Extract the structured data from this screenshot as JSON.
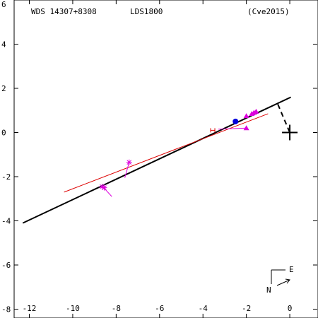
{
  "header": {
    "wds_id": "WDS 14307+8308",
    "discoverer": "LDS1800",
    "reference": "(Cve2015)"
  },
  "compass": {
    "east_label": "E",
    "north_label": "N"
  },
  "chart_data": {
    "type": "scatter",
    "xlim": [
      -12.7,
      1.3
    ],
    "ylim": [
      -8.4,
      6
    ],
    "x_ticks": [
      -12,
      -10,
      -8,
      -6,
      -4,
      -2,
      0
    ],
    "y_ticks": [
      -8,
      -6,
      -4,
      -2,
      0,
      2,
      4,
      6
    ],
    "tick_labels_y_suffix": "",
    "grid": false,
    "orbit_line": {
      "x": [
        -12.3,
        0.05
      ],
      "y": [
        -4.1,
        1.6
      ],
      "color": "#000000"
    },
    "fit_line": {
      "x": [
        -10.4,
        -1.0
      ],
      "y": [
        -2.7,
        0.85
      ],
      "color": "#dd0000"
    },
    "primary_star": {
      "x": 0,
      "y": 0
    },
    "star_connector": {
      "from": [
        -0.55,
        1.28
      ],
      "to": [
        0,
        0
      ]
    },
    "observations": [
      {
        "marker": "asterisk",
        "x": -8.65,
        "y": -2.45,
        "color": "#dd00dd"
      },
      {
        "marker": "asterisk",
        "x": -8.55,
        "y": -2.5,
        "color": "#dd00dd"
      },
      {
        "marker": "asterisk",
        "x": -7.4,
        "y": -1.35,
        "color": "#dd00dd"
      },
      {
        "marker": "triangle",
        "x": -2.0,
        "y": 0.75,
        "color": "#dd00dd"
      },
      {
        "marker": "triangle",
        "x": -1.75,
        "y": 0.85,
        "color": "#dd00dd"
      },
      {
        "marker": "triangle",
        "x": -1.65,
        "y": 0.9,
        "color": "#dd00dd"
      },
      {
        "marker": "triangle",
        "x": -1.55,
        "y": 0.95,
        "color": "#dd00dd"
      },
      {
        "marker": "triangle",
        "x": -2.0,
        "y": 0.2,
        "color": "#dd00dd"
      },
      {
        "marker": "dot",
        "x": -2.5,
        "y": 0.5,
        "color": "#0000dd"
      },
      {
        "marker": "bracket",
        "x": -3.55,
        "y": 0.1,
        "color": "#dd0000"
      }
    ]
  }
}
